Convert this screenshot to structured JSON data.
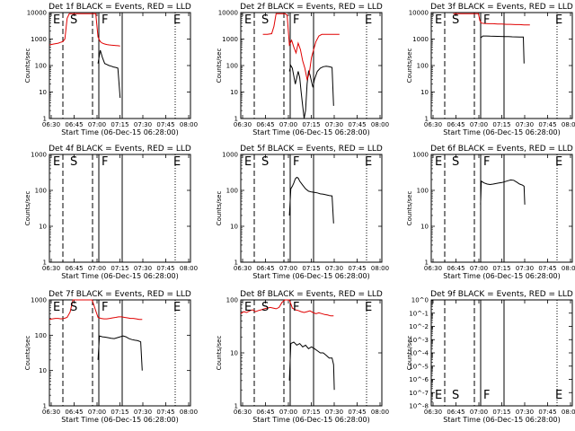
{
  "chart_data": {
    "type": "line",
    "x_ticks": [
      "06:30",
      "06:45",
      "07:00",
      "07:15",
      "07:30",
      "07:45",
      "08:00"
    ],
    "xlabel": "Start Time (06-Dec-15 06:28:00)",
    "ylabel": "Counts/sec",
    "events_color": "#000000",
    "lld_color": "#e00000",
    "panels": [
      {
        "title": "Det 1f BLACK = Events, RED = LLD",
        "ylog": true,
        "y_ticks": [
          "1",
          "10",
          "100",
          "1000",
          "10000"
        ],
        "markers": [
          "E",
          "S",
          "F",
          "E"
        ],
        "series": [
          {
            "name": "Events",
            "x": [
              0,
              9,
              13,
              15,
              18,
              21,
              24,
              27,
              30,
              33,
              36,
              39,
              42,
              45,
              48,
              51,
              54,
              57,
              60,
              63,
              66,
              69,
              72,
              75,
              78,
              81,
              84,
              87,
              90,
              93,
              96
            ],
            "y": [
              null,
              null,
              null,
              null,
              null,
              null,
              null,
              null,
              null,
              null,
              null,
              null,
              null,
              null,
              null,
              null,
              null,
              null,
              null,
              null,
              120,
              380,
              200,
              120,
              110,
              100,
              95,
              88,
              85,
              80,
              6
            ]
          },
          {
            "name": "LLD",
            "x": [
              0,
              6,
              12,
              15,
              18,
              21,
              24,
              27,
              30,
              33,
              36,
              39,
              42,
              45,
              48,
              51,
              54,
              57,
              60,
              63,
              66,
              69,
              72,
              75,
              78,
              81,
              84,
              87,
              90,
              93,
              96
            ],
            "y": [
              600,
              650,
              700,
              750,
              800,
              1000,
              6000,
              9000,
              9000,
              9000,
              9000,
              9000,
              9000,
              9000,
              9000,
              9000,
              9000,
              9000,
              9000,
              9000,
              1200,
              800,
              700,
              650,
              620,
              600,
              590,
              580,
              570,
              560,
              550
            ]
          }
        ]
      },
      {
        "title": "Det 2f BLACK = Events, RED = LLD",
        "ylog": true,
        "y_ticks": [
          "1",
          "10",
          "100",
          "1000",
          "10000"
        ],
        "markers": [
          "E",
          "S",
          "F",
          "E"
        ],
        "series": [
          {
            "name": "Events",
            "x": [
              66,
              68,
              70,
              72,
              74,
              76,
              78,
              80,
              82,
              84,
              86,
              88,
              90,
              92,
              94,
              96,
              98,
              100,
              104,
              108,
              112,
              116,
              120,
              124,
              126
            ],
            "y": [
              60,
              100,
              80,
              40,
              20,
              35,
              60,
              35,
              10,
              3,
              1,
              2,
              20,
              60,
              45,
              25,
              15,
              30,
              60,
              80,
              90,
              95,
              90,
              85,
              3
            ]
          },
          {
            "name": "LLD",
            "x": [
              30,
              36,
              42,
              45,
              48,
              51,
              54,
              57,
              60,
              63,
              66,
              69,
              72,
              75,
              78,
              81,
              84,
              87,
              90,
              93,
              96,
              99,
              102,
              106,
              110,
              116,
              122,
              128,
              134
            ],
            "y": [
              1500,
              1500,
              1600,
              3000,
              9000,
              9000,
              9000,
              9000,
              9000,
              8000,
              600,
              900,
              500,
              300,
              700,
              400,
              150,
              80,
              30,
              50,
              200,
              400,
              800,
              1300,
              1500,
              1500,
              1500,
              1500,
              1500
            ]
          }
        ]
      },
      {
        "title": "Det 3f BLACK = Events, RED = LLD",
        "ylog": true,
        "y_ticks": [
          "1",
          "10",
          "100",
          "1000",
          "10000"
        ],
        "markers": [
          "E",
          "S",
          "F",
          "E"
        ],
        "series": [
          {
            "name": "Events",
            "x": [
              67,
              70,
              75,
              80,
              85,
              90,
              95,
              100,
              105,
              110,
              115,
              120,
              125,
              126
            ],
            "y": [
              1100,
              1300,
              1300,
              1280,
              1270,
              1260,
              1250,
              1240,
              1230,
              1220,
              1210,
              1200,
              1190,
              120
            ]
          },
          {
            "name": "LLD",
            "x": [
              30,
              36,
              42,
              48,
              54,
              60,
              62,
              64,
              66,
              68,
              72,
              78,
              84,
              90,
              96,
              102,
              108,
              114,
              120,
              126,
              134
            ],
            "y": [
              9000,
              9000,
              9000,
              9000,
              9000,
              9000,
              9000,
              9000,
              5000,
              4000,
              3900,
              3800,
              3800,
              3700,
              3700,
              3600,
              3600,
              3500,
              3500,
              3400,
              3400
            ]
          }
        ]
      },
      {
        "title": "Det 4f BLACK = Events, RED = LLD",
        "ylog": true,
        "y_ticks": [
          "1",
          "10",
          "100",
          "1000"
        ],
        "markers": [
          "E",
          "S",
          "F",
          "E"
        ],
        "series": []
      },
      {
        "title": "Det 5f BLACK = Events, RED = LLD",
        "ylog": true,
        "y_ticks": [
          "1",
          "10",
          "100",
          "1000"
        ],
        "markers": [
          "E",
          "S",
          "F",
          "E"
        ],
        "series": [
          {
            "name": "Events",
            "x": [
              66,
              68,
              70,
              72,
              74,
              76,
              78,
              80,
              84,
              88,
              92,
              96,
              100,
              104,
              108,
              112,
              116,
              120,
              124,
              126
            ],
            "y": [
              20,
              110,
              130,
              160,
              210,
              230,
              220,
              180,
              140,
              110,
              95,
              90,
              88,
              85,
              80,
              78,
              75,
              72,
              70,
              12
            ]
          }
        ]
      },
      {
        "title": "Det 6f BLACK = Events, RED = LLD",
        "ylog": true,
        "y_ticks": [
          "1",
          "10",
          "100",
          "1000"
        ],
        "markers": [
          "E",
          "S",
          "F",
          "E"
        ],
        "series": [
          {
            "name": "Events",
            "x": [
              67,
              68,
              72,
              76,
              80,
              84,
              88,
              92,
              96,
              100,
              104,
              108,
              112,
              116,
              120,
              124,
              126,
              127
            ],
            "y": [
              40,
              180,
              160,
              150,
              145,
              150,
              155,
              160,
              165,
              175,
              185,
              195,
              190,
              170,
              150,
              140,
              130,
              40
            ]
          }
        ]
      },
      {
        "title": "Det 7f BLACK = Events, RED = LLD",
        "ylog": true,
        "y_ticks": [
          "1",
          "10",
          "100",
          "1000"
        ],
        "markers": [
          "E",
          "S",
          "F",
          "E"
        ],
        "series": [
          {
            "name": "Events",
            "x": [
              66,
              68,
              72,
              76,
              80,
              84,
              88,
              92,
              96,
              100,
              104,
              108,
              112,
              116,
              120,
              124,
              126
            ],
            "y": [
              20,
              95,
              90,
              88,
              85,
              82,
              80,
              85,
              90,
              95,
              90,
              80,
              75,
              72,
              70,
              65,
              10
            ]
          },
          {
            "name": "LLD",
            "x": [
              0,
              4,
              8,
              12,
              16,
              20,
              24,
              28,
              32,
              36,
              40,
              44,
              48,
              52,
              56,
              58,
              66,
              70,
              74,
              78,
              82,
              86,
              90,
              94,
              98,
              102,
              106,
              110,
              114,
              118,
              122,
              126
            ],
            "y": [
              280,
              290,
              300,
              300,
              290,
              300,
              320,
              450,
              1500,
              1500,
              1500,
              1500,
              1500,
              1500,
              1500,
              1500,
              320,
              300,
              290,
              290,
              300,
              310,
              320,
              330,
              330,
              320,
              310,
              300,
              300,
              290,
              280,
              280
            ]
          }
        ]
      },
      {
        "title": "Det 8f BLACK = Events, RED = LLD",
        "ylog": true,
        "y_ticks": [
          "1",
          "10",
          "100"
        ],
        "markers": [
          "E",
          "S",
          "F",
          "E"
        ],
        "series": [
          {
            "name": "Events",
            "x": [
              66,
              68,
              72,
              76,
              80,
              84,
              88,
              92,
              96,
              100,
              104,
              108,
              112,
              116,
              120,
              124,
              126,
              127
            ],
            "y": [
              3,
              15,
              16,
              14,
              15,
              13,
              14,
              12,
              13,
              12,
              11,
              10,
              10,
              9,
              8,
              8,
              6,
              2
            ]
          },
          {
            "name": "LLD",
            "x": [
              0,
              4,
              8,
              12,
              16,
              20,
              24,
              28,
              32,
              36,
              40,
              44,
              48,
              52,
              56,
              60,
              64,
              66,
              70,
              74,
              78,
              82,
              86,
              90,
              94,
              98,
              102,
              106,
              110,
              114,
              118,
              122,
              126
            ],
            "y": [
              55,
              60,
              58,
              62,
              65,
              60,
              63,
              65,
              68,
              70,
              72,
              70,
              68,
              72,
              90,
              200,
              200,
              180,
              70,
              65,
              63,
              60,
              58,
              60,
              62,
              58,
              55,
              57,
              55,
              53,
              52,
              50,
              50
            ]
          }
        ]
      },
      {
        "title": "Det 9f BLACK = Events, RED = LLD",
        "ylog": true,
        "y_ticks": [
          "10^0",
          "10^-1",
          "10^-2",
          "10^-3",
          "10^-4",
          "10^-5",
          "10^-6",
          "10^-7",
          "10^-8"
        ],
        "markers": [
          "E",
          "S",
          "F",
          "E"
        ],
        "series": []
      }
    ]
  }
}
